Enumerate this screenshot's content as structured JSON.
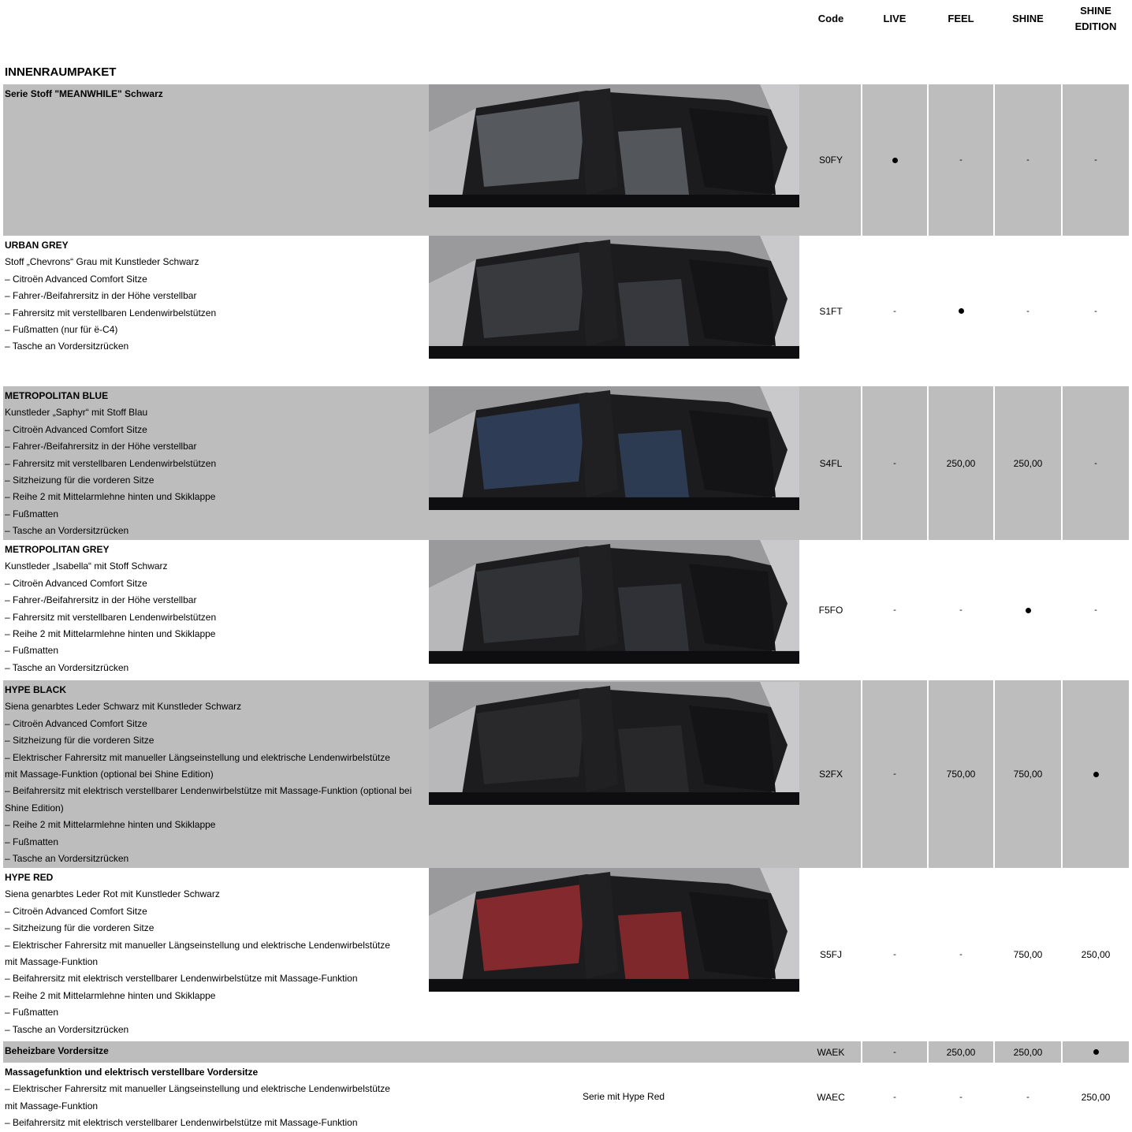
{
  "header": {
    "code": "Code",
    "live": "LIVE",
    "feel": "FEEL",
    "shine": "SHINE",
    "shine_edition": "SHINE\nEDITION"
  },
  "section_title": "INNENRAUMPAKET",
  "rows": [
    {
      "title": "Serie Stoff \"MEANWHILE\" Schwarz",
      "lines": [],
      "code": "S0FY",
      "values": [
        "●",
        "-",
        "-",
        "-"
      ],
      "interior_color": "#5a5d62"
    },
    {
      "title": "URBAN GREY",
      "lines": [
        "Stoff „Chevrons“ Grau mit Kunstleder Schwarz",
        "– Citroën Advanced Comfort Sitze",
        "– Fahrer-/Beifahrersitz in der Höhe verstellbar",
        "– Fahrersitz mit verstellbaren Lendenwirbelstützen",
        "– Fußmatten (nur für ë-C4)",
        "– Tasche an Vordersitzrücken"
      ],
      "code": "S1FT",
      "values": [
        "-",
        "●",
        "-",
        "-"
      ],
      "interior_color": "#3a3c40"
    },
    {
      "title": "METROPOLITAN BLUE",
      "lines": [
        "Kunstleder „Saphyr“ mit Stoff Blau",
        "– Citroën Advanced Comfort Sitze",
        "– Fahrer-/Beifahrersitz in der Höhe verstellbar",
        "– Fahrersitz mit verstellbaren Lendenwirbelstützen",
        "– Sitzheizung für die vorderen Sitze",
        "– Reihe 2 mit Mittelarmlehne hinten und Skiklappe",
        "– Fußmatten",
        "– Tasche an Vordersitzrücken"
      ],
      "code": "S4FL",
      "values": [
        "-",
        "250,00",
        "250,00",
        "-"
      ],
      "interior_color": "#2f3f58"
    },
    {
      "title": "METROPOLITAN GREY",
      "lines": [
        "Kunstleder „Isabella“ mit Stoff Schwarz",
        "– Citroën Advanced Comfort Sitze",
        "– Fahrer-/Beifahrersitz in der Höhe verstellbar",
        "– Fahrersitz mit verstellbaren Lendenwirbelstützen",
        "– Reihe 2 mit Mittelarmlehne hinten und Skiklappe",
        "– Fußmatten",
        "– Tasche an Vordersitzrücken"
      ],
      "code": "F5FO",
      "values": [
        "-",
        "-",
        "●",
        "-"
      ],
      "interior_color": "#333438"
    },
    {
      "title": "HYPE BLACK",
      "lines": [
        "Siena genarbtes Leder Schwarz mit Kunstleder Schwarz",
        "– Citroën Advanced Comfort Sitze",
        "– Sitzheizung für die vorderen Sitze",
        "– Elektrischer Fahrersitz mit manueller Längseinstellung und elektrische Lendenwirbelstütze",
        "mit Massage-Funktion (optional bei Shine Edition)",
        "– Beifahrersitz mit elektrisch verstellbarer Lendenwirbelstütze mit Massage-Funktion (optional bei Shine Edition)",
        "– Reihe 2 mit Mittelarmlehne hinten und Skiklappe",
        "– Fußmatten",
        "– Tasche an Vordersitzrücken"
      ],
      "code": "S2FX",
      "values": [
        "-",
        "750,00",
        "750,00",
        "●"
      ],
      "interior_color": "#2a2a2c"
    },
    {
      "title": "HYPE RED",
      "lines": [
        "Siena genarbtes Leder Rot mit Kunstleder Schwarz",
        "– Citroën Advanced Comfort Sitze",
        "– Sitzheizung für die vorderen Sitze",
        "– Elektrischer Fahrersitz mit manueller Längseinstellung und elektrische Lendenwirbelstütze",
        "mit Massage-Funktion",
        "– Beifahrersitz mit elektrisch verstellbarer Lendenwirbelstütze mit Massage-Funktion",
        "– Reihe 2 mit Mittelarmlehne hinten und Skiklappe",
        "– Fußmatten",
        "– Tasche an Vordersitzrücken"
      ],
      "code": "S5FJ",
      "values": [
        "-",
        "-",
        "750,00",
        "250,00"
      ],
      "interior_color": "#8a2a2e"
    },
    {
      "title": "Beheizbare Vordersitze",
      "lines": [],
      "code": "WAEK",
      "values": [
        "-",
        "250,00",
        "250,00",
        "●"
      ]
    },
    {
      "title": "Massagefunktion und elektrisch verstellbare Vordersitze",
      "lines": [
        "– Elektrischer Fahrersitz mit manueller Längseinstellung und elektrische Lendenwirbelstütze",
        "mit Massage-Funktion",
        "– Beifahrersitz mit elektrisch verstellbarer Lendenwirbelstütze mit Massage-Funktion"
      ],
      "code": "WAEC",
      "note": "Serie mit Hype Red",
      "values": [
        "-",
        "-",
        "-",
        "250,00"
      ]
    }
  ]
}
